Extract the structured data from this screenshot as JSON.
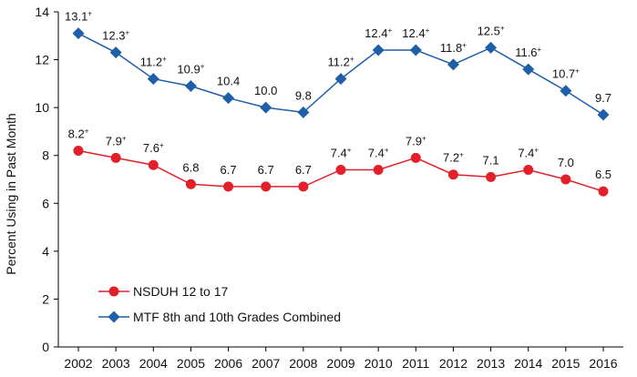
{
  "chart_data": {
    "type": "line",
    "title": "",
    "xlabel": "",
    "ylabel": "Percent Using in Past Month",
    "ylim": [
      0,
      14
    ],
    "yticks": [
      0,
      2,
      4,
      6,
      8,
      10,
      12,
      14
    ],
    "grid": false,
    "legend_position": "bottom-left",
    "categories": [
      "2002",
      "2003",
      "2004",
      "2005",
      "2006",
      "2007",
      "2008",
      "2009",
      "2010",
      "2011",
      "2012",
      "2013",
      "2014",
      "2015",
      "2016"
    ],
    "series": [
      {
        "name": "NSDUH 12 to 17",
        "color": "#e3202a",
        "marker": "circle",
        "values": [
          8.2,
          7.9,
          7.6,
          6.8,
          6.7,
          6.7,
          6.7,
          7.4,
          7.4,
          7.9,
          7.2,
          7.1,
          7.4,
          7.0,
          6.5
        ],
        "labels": [
          "8.2",
          "7.9",
          "7.6",
          "6.8",
          "6.7",
          "6.7",
          "6.7",
          "7.4",
          "7.4",
          "7.9",
          "7.2",
          "7.1",
          "7.4",
          "7.0",
          "6.5"
        ],
        "superscripts": [
          "+",
          "+",
          "+",
          "",
          "",
          "",
          "",
          "+",
          "+",
          "+",
          "+",
          "",
          "+",
          "",
          ""
        ]
      },
      {
        "name": "MTF 8th and 10th Grades Combined",
        "color": "#1f5fa8",
        "marker": "diamond",
        "values": [
          13.1,
          12.3,
          11.2,
          10.9,
          10.4,
          10.0,
          9.8,
          11.2,
          12.4,
          12.4,
          11.8,
          12.5,
          11.6,
          10.7,
          9.7
        ],
        "labels": [
          "13.1",
          "12.3",
          "11.2",
          "10.9",
          "10.4",
          "10.0",
          "9.8",
          "11.2",
          "12.4",
          "12.4",
          "11.8",
          "12.5",
          "11.6",
          "10.7",
          "9.7"
        ],
        "superscripts": [
          "+",
          "+",
          "+",
          "+",
          "",
          "",
          "",
          "+",
          "+",
          "+",
          "+",
          "+",
          "+",
          "+",
          ""
        ]
      }
    ]
  }
}
